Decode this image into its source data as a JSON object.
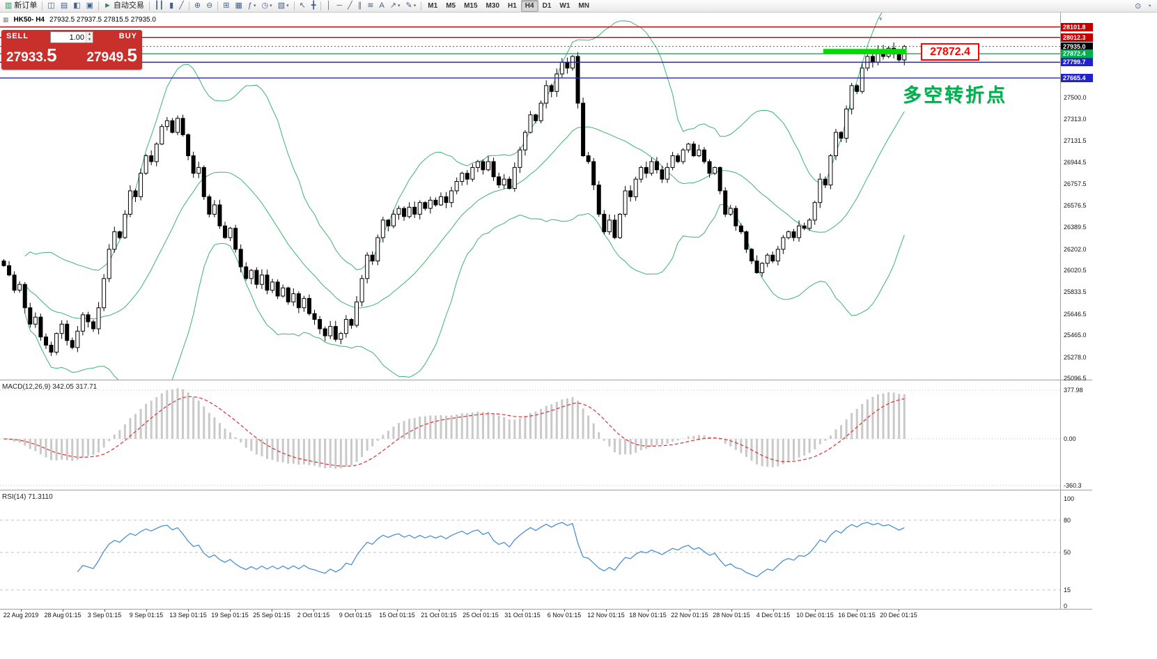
{
  "colors": {
    "panel_red": "#c9302c",
    "annotation_red": "#ff0000",
    "annotation_green": "#00b050",
    "bollinger": "#3cb371",
    "macd_hist": "#c9c9c9",
    "macd_signal": "#e03030",
    "rsi_line": "#4a90d2",
    "highlight_green": "#00dc00"
  },
  "icons": {
    "caret_up": "▴",
    "caret_down": "▾",
    "symbol_icon": "▦",
    "shift_marker": "▾"
  },
  "toolbar": {
    "groups": [
      {
        "items": [
          {
            "name": "new-order-button",
            "glyph": "▥",
            "glyph_color": "#2e8b57",
            "label": "新订单"
          }
        ]
      },
      {
        "items": [
          {
            "name": "market-watch-icon",
            "glyph": "◫"
          },
          {
            "name": "data-window-icon",
            "glyph": "▤"
          },
          {
            "name": "navigator-icon",
            "glyph": "◧"
          },
          {
            "name": "terminal-icon",
            "glyph": "▣"
          }
        ]
      },
      {
        "items": [
          {
            "name": "autotrade-button",
            "glyph": "►",
            "glyph_color": "#2e8b57",
            "label": "自动交易"
          }
        ]
      },
      {
        "items": [
          {
            "name": "bar-chart-icon",
            "glyph": "┃┃"
          },
          {
            "name": "candlestick-chart-icon",
            "glyph": "▮"
          },
          {
            "name": "line-chart-icon",
            "glyph": "╱"
          }
        ]
      },
      {
        "items": [
          {
            "name": "zoom-in-icon",
            "glyph": "⊕"
          },
          {
            "name": "zoom-out-icon",
            "glyph": "⊖"
          }
        ]
      },
      {
        "items": [
          {
            "name": "tile-windows-icon",
            "glyph": "⊞"
          },
          {
            "name": "auto-arrange-icon",
            "glyph": "▦"
          },
          {
            "name": "indicators-icon",
            "glyph": "ƒ",
            "caret": true
          },
          {
            "name": "periods-icon",
            "glyph": "◷",
            "caret": true
          },
          {
            "name": "templates-icon",
            "glyph": "▧",
            "caret": true
          }
        ]
      },
      {
        "items": [
          {
            "name": "cursor-icon",
            "glyph": "↖"
          },
          {
            "name": "crosshair-icon",
            "glyph": "╋"
          }
        ]
      },
      {
        "items": [
          {
            "name": "vertical-line-icon",
            "glyph": "│"
          },
          {
            "name": "horizontal-line-icon",
            "glyph": "─"
          },
          {
            "name": "trendline-icon",
            "glyph": "╱"
          },
          {
            "name": "channel-icon",
            "glyph": "∥"
          },
          {
            "name": "fibonacci-icon",
            "glyph": "≋"
          },
          {
            "name": "text-icon",
            "glyph": "A"
          },
          {
            "name": "arrows-icon",
            "glyph": "↗",
            "caret": true
          },
          {
            "name": "drawing-icon",
            "glyph": "✎",
            "caret": true
          }
        ]
      }
    ],
    "timeframes": [
      {
        "label": "M1"
      },
      {
        "label": "M5"
      },
      {
        "label": "M15"
      },
      {
        "label": "M30"
      },
      {
        "label": "H1"
      },
      {
        "label": "H4",
        "active": true
      },
      {
        "label": "D1"
      },
      {
        "label": "W1"
      },
      {
        "label": "MN"
      }
    ],
    "right_items": [
      {
        "name": "search-icon",
        "glyph": "⊙"
      },
      {
        "name": "community-icon",
        "glyph": "◔"
      }
    ]
  },
  "chart": {
    "symbol_period": "HK50- H4",
    "ohlc_line": "27932.5 27937.5 27815.5 27935.0"
  },
  "one_click": {
    "sell_label": "SELL",
    "buy_label": "BUY",
    "volume": "1.00",
    "sell_price_main": "27933.",
    "sell_price_pips": "5",
    "buy_price_main": "27949.",
    "buy_price_pips": "5"
  },
  "annotations": {
    "price_callout": "27872.4",
    "turning_point": "多空转折点"
  },
  "indicators": {
    "macd": {
      "label": "MACD(12,26,9) 342.05 317.71",
      "params": [
        12,
        26,
        9
      ],
      "axis": [
        "377.98",
        "0.00",
        "-360.3"
      ]
    },
    "rsi": {
      "label": "RSI(14) 71.3110",
      "period": 14,
      "axis": [
        "100",
        "80",
        "50",
        "15",
        "0"
      ],
      "levels": [
        80,
        50,
        15
      ]
    }
  },
  "chart_data": {
    "type": "candlestick",
    "symbol": "HK50",
    "timeframe": "H4",
    "ohlc_display": {
      "open": "27932.5",
      "high": "27937.5",
      "low": "27815.5",
      "close": "27935.0"
    },
    "y_range": [
      25085,
      28225
    ],
    "y_axis_labels": [
      "27500.0",
      "27313.0",
      "27131.5",
      "26944.5",
      "26757.5",
      "26576.5",
      "26389.5",
      "26202.0",
      "26020.5",
      "25833.5",
      "25646.5",
      "25465.0",
      "25278.0",
      "25096.5"
    ],
    "x_labels": [
      "22 Aug 2019",
      "28 Aug 01:15",
      "3 Sep 01:15",
      "9 Sep 01:15",
      "13 Sep 01:15",
      "19 Sep 01:15",
      "25 Sep 01:15",
      "2 Oct 01:15",
      "9 Oct 01:15",
      "15 Oct 01:15",
      "21 Oct 01:15",
      "25 Oct 01:15",
      "31 Oct 01:15",
      "6 Nov 01:15",
      "12 Nov 01:15",
      "18 Nov 01:15",
      "22 Nov 01:15",
      "28 Nov 01:15",
      "4 Dec 01:15",
      "10 Dec 01:15",
      "16 Dec 01:15",
      "20 Dec 01:15"
    ],
    "closes": [
      26060,
      25980,
      25850,
      25900,
      25700,
      25560,
      25620,
      25450,
      25380,
      25320,
      25480,
      25560,
      25420,
      25360,
      25500,
      25640,
      25580,
      25520,
      25700,
      25950,
      26200,
      26350,
      26300,
      26500,
      26700,
      26650,
      26850,
      27000,
      26950,
      27100,
      27250,
      27300,
      27200,
      27320,
      27180,
      27000,
      26850,
      26900,
      26650,
      26500,
      26580,
      26400,
      26300,
      26380,
      26200,
      26050,
      25950,
      26020,
      25900,
      25980,
      25850,
      25920,
      25800,
      25870,
      25750,
      25820,
      25700,
      25780,
      25650,
      25600,
      25520,
      25460,
      25540,
      25430,
      25480,
      25600,
      25550,
      25750,
      25950,
      26150,
      26100,
      26300,
      26450,
      26400,
      26500,
      26550,
      26480,
      26560,
      26500,
      26600,
      26550,
      26620,
      26580,
      26650,
      26600,
      26700,
      26780,
      26850,
      26800,
      26900,
      26950,
      26880,
      26950,
      26820,
      26750,
      26800,
      26720,
      26900,
      27050,
      27200,
      27350,
      27300,
      27450,
      27600,
      27550,
      27700,
      27800,
      27750,
      27850,
      27450,
      27000,
      26950,
      26750,
      26500,
      26350,
      26450,
      26300,
      26500,
      26700,
      26650,
      26800,
      26900,
      26850,
      26950,
      26880,
      26800,
      26900,
      27000,
      26950,
      27050,
      27100,
      27000,
      27050,
      26950,
      26850,
      26900,
      26700,
      26500,
      26550,
      26400,
      26350,
      26200,
      26100,
      26000,
      26080,
      26150,
      26100,
      26200,
      26300,
      26350,
      26300,
      26400,
      26380,
      26450,
      26600,
      26800,
      26750,
      27000,
      27200,
      27150,
      27400,
      27600,
      27550,
      27750,
      27850,
      27800,
      27900,
      27850,
      27920,
      27870,
      27820,
      27935
    ],
    "bollinger": {
      "period": 20,
      "deviation": 2
    },
    "levels": [
      {
        "label": "28101.8",
        "price": 28101.8,
        "color": "#c00000",
        "type": "hline"
      },
      {
        "label": "28012.3",
        "price": 28012.3,
        "color": "#c00000",
        "type": "hline"
      },
      {
        "label": "27935.0",
        "price": 27935.0,
        "color": "#000000",
        "type": "current_price"
      },
      {
        "label": "27872.4",
        "price": 27872.4,
        "color": "#00b050",
        "type": "hline"
      },
      {
        "label": "27799.7",
        "price": 27799.7,
        "color": "#2222cc",
        "type": "hline"
      },
      {
        "label": "27665.4",
        "price": 27665.4,
        "color": "#2222cc",
        "type": "hline"
      }
    ],
    "highlight": {
      "price": 27893,
      "from_bar": 156,
      "to_bar": 171,
      "thickness": 7
    }
  }
}
